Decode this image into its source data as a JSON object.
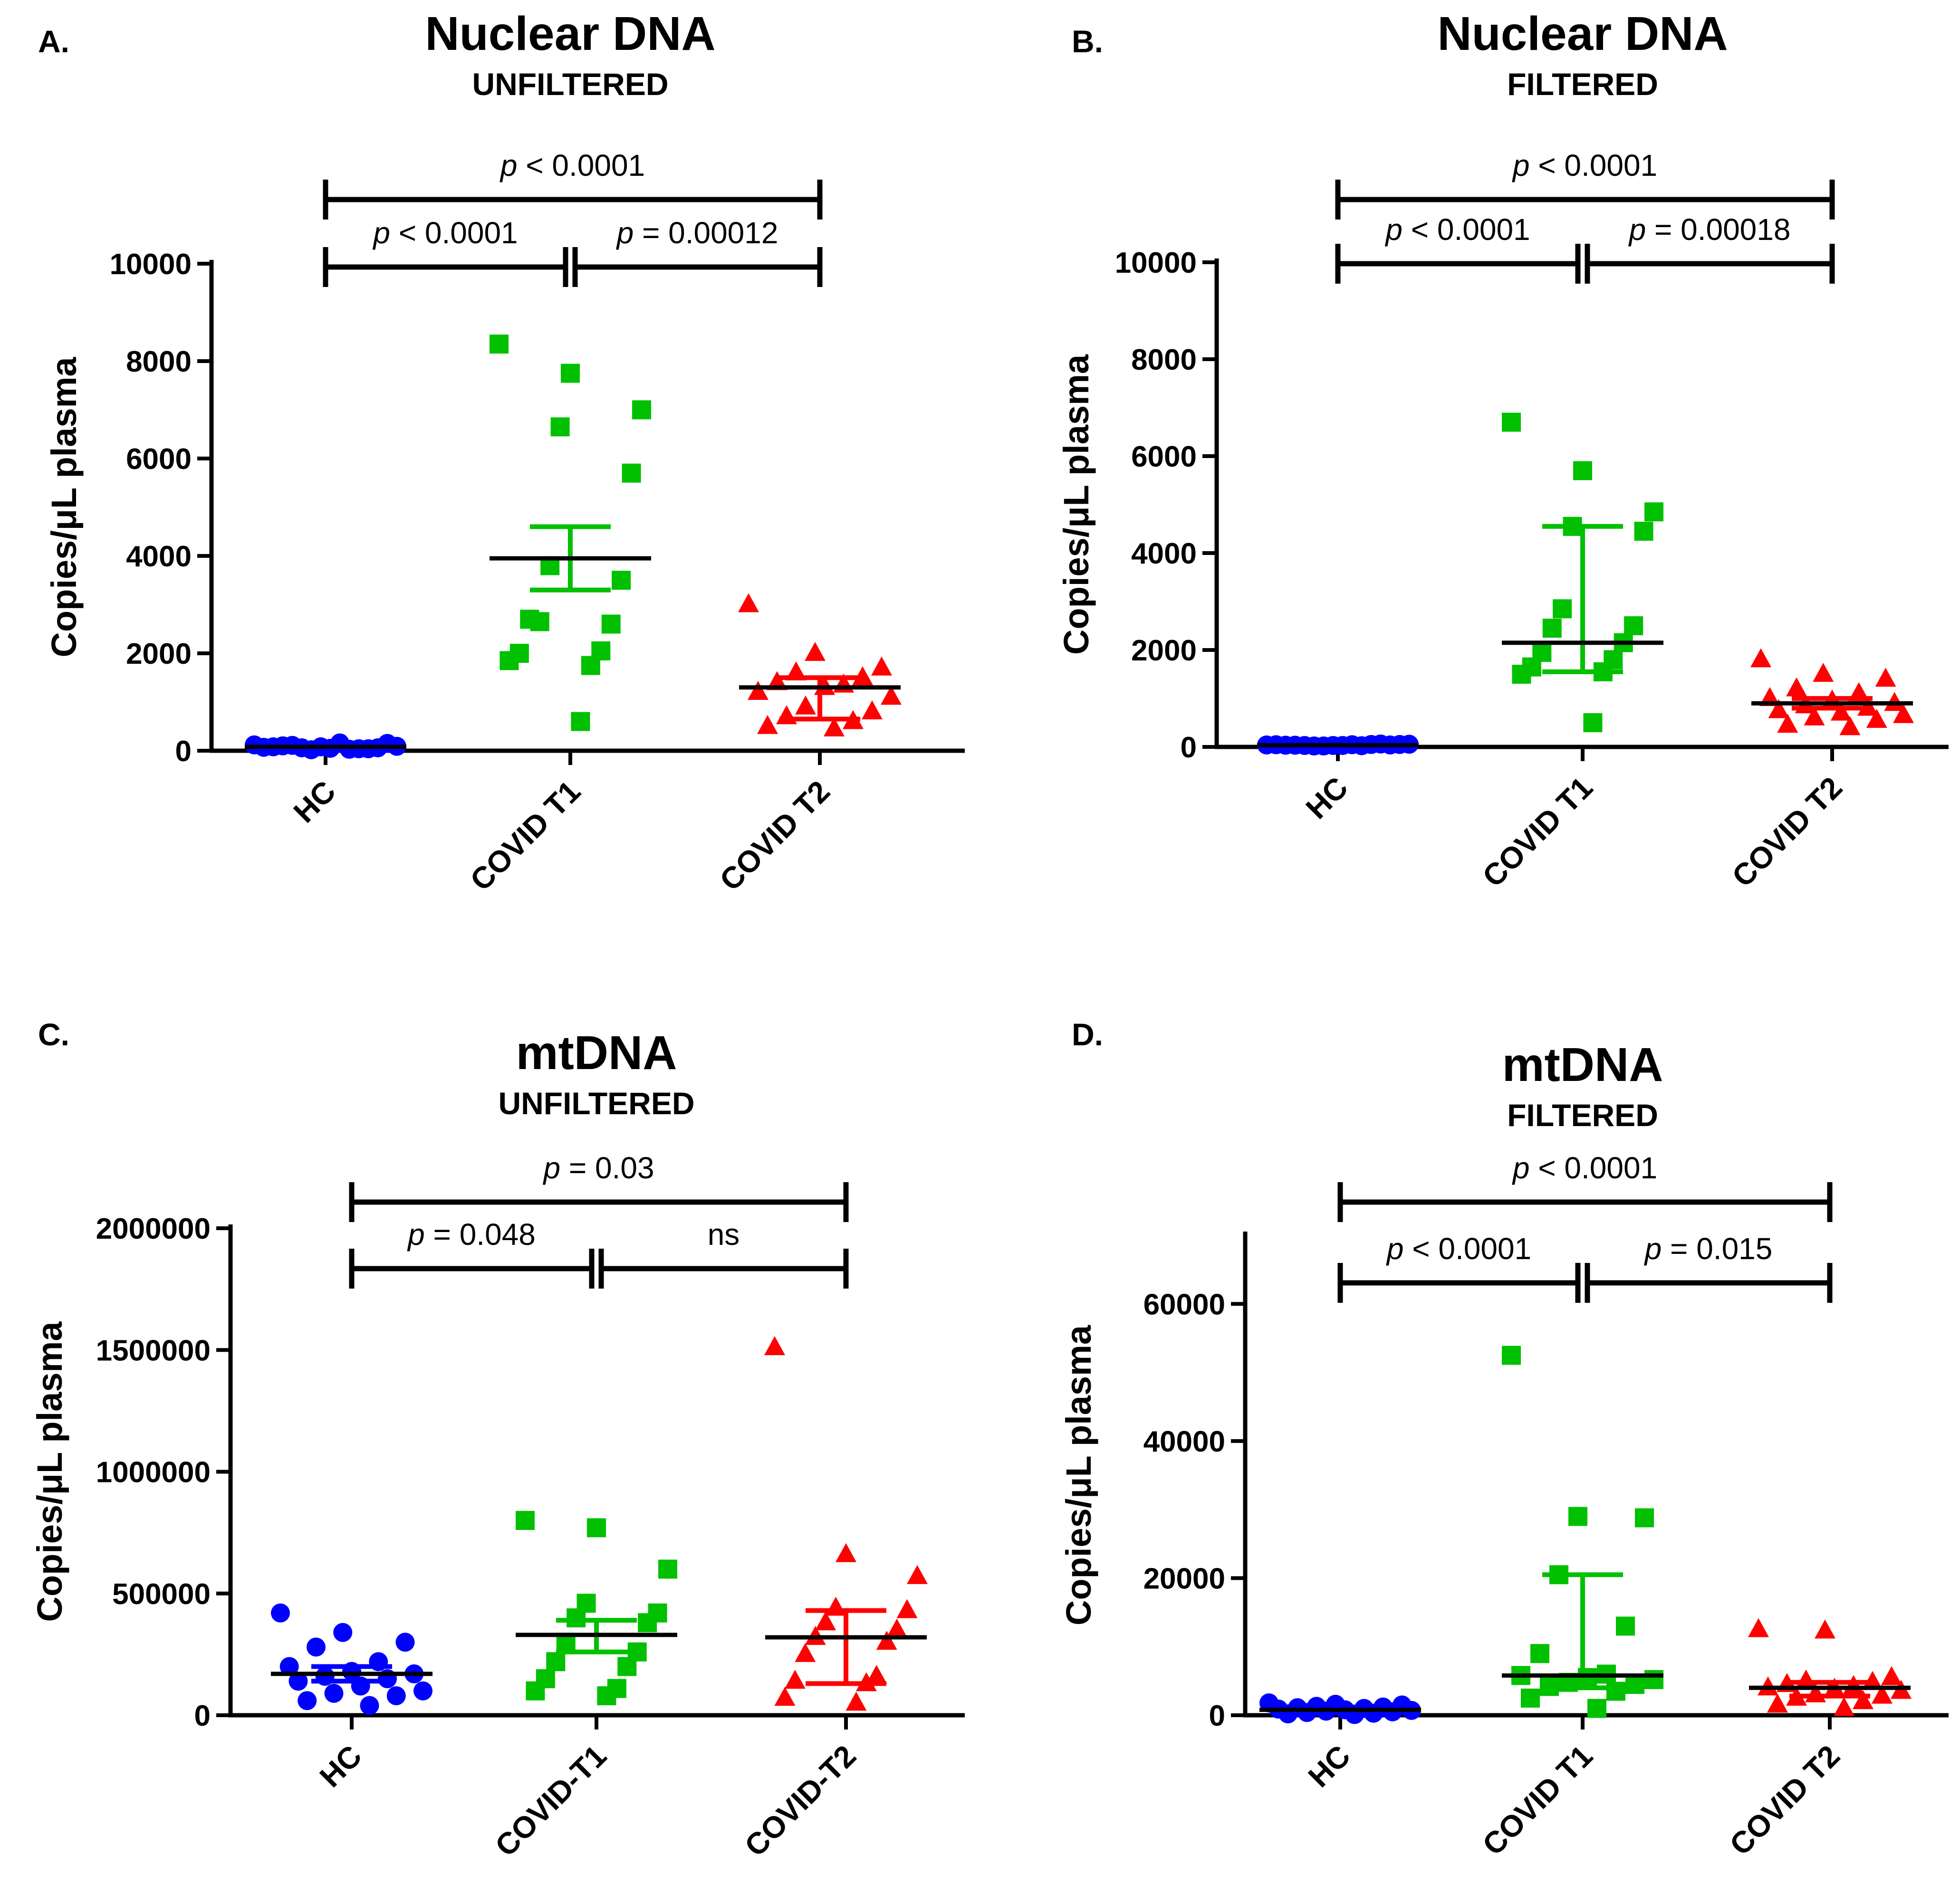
{
  "chart_data": [
    {
      "panel": "A.",
      "type": "scatter",
      "title": "Nuclear DNA",
      "subtitle": "UNFILTERED",
      "ylabel": "Copies/μL plasma",
      "ylim": [
        0,
        10000
      ],
      "yticks": [
        "0",
        "2000",
        "4000",
        "6000",
        "8000",
        "10000"
      ],
      "categories": [
        "HC",
        "COVID T1",
        "COVID T2"
      ],
      "series": [
        {
          "color": "#0000ff",
          "marker": "circle",
          "values": [
            120,
            80,
            150,
            60,
            40,
            100,
            30,
            70,
            50,
            90,
            20,
            60,
            110,
            40,
            80,
            160
          ],
          "center": 80,
          "err": [
            40,
            120
          ]
        },
        {
          "color": "#00c000",
          "marker": "square",
          "values": [
            8350,
            7750,
            7000,
            6650,
            5700,
            3800,
            3500,
            2650,
            2600,
            2700,
            2050,
            2000,
            1750,
            1850,
            600
          ],
          "center": 3950,
          "err": [
            3300,
            4600
          ]
        },
        {
          "color": "#ff0000",
          "marker": "triangle",
          "values": [
            3000,
            2000,
            1700,
            1600,
            1500,
            1400,
            1350,
            1200,
            1300,
            1100,
            900,
            800,
            700,
            600,
            500,
            450
          ],
          "center": 1300,
          "err": [
            650,
            1500
          ]
        }
      ],
      "comparisons": [
        {
          "from": 0,
          "to": 2,
          "level": "top",
          "label": "p < 0.0001"
        },
        {
          "from": 0,
          "to": 1,
          "level": "low",
          "label": "p < 0.0001"
        },
        {
          "from": 1,
          "to": 2,
          "level": "low",
          "label": "p = 0.00012"
        }
      ]
    },
    {
      "panel": "B.",
      "type": "scatter",
      "title": "Nuclear DNA",
      "subtitle": "FILTERED",
      "ylabel": "Copies/μL plasma",
      "ylim": [
        0,
        10000
      ],
      "yticks": [
        "0",
        "2000",
        "4000",
        "6000",
        "8000",
        "10000"
      ],
      "categories": [
        "HC",
        "COVID T1",
        "COVID T2"
      ],
      "series": [
        {
          "color": "#0000ff",
          "marker": "circle",
          "values": [
            40,
            30,
            50,
            20,
            60,
            35,
            25,
            45,
            30,
            55,
            20,
            40,
            30,
            50,
            35,
            45
          ],
          "center": 35,
          "err": [
            20,
            50
          ]
        },
        {
          "color": "#00c000",
          "marker": "square",
          "values": [
            6700,
            5700,
            4850,
            4550,
            4450,
            2850,
            2500,
            2450,
            2150,
            1950,
            1800,
            1650,
            1550,
            1500,
            500
          ],
          "center": 2150,
          "err": [
            1550,
            4550
          ]
        },
        {
          "color": "#ff0000",
          "marker": "triangle",
          "values": [
            1800,
            1500,
            1400,
            1200,
            1100,
            1000,
            950,
            900,
            850,
            800,
            750,
            700,
            650,
            600,
            550,
            450,
            400
          ],
          "center": 900,
          "err": [
            800,
            1000
          ]
        }
      ],
      "comparisons": [
        {
          "from": 0,
          "to": 2,
          "level": "top",
          "label": "p < 0.0001"
        },
        {
          "from": 0,
          "to": 1,
          "level": "low",
          "label": "p < 0.0001"
        },
        {
          "from": 1,
          "to": 2,
          "level": "low",
          "label": "p = 0.00018"
        }
      ]
    },
    {
      "panel": "C.",
      "type": "scatter",
      "title": "mtDNA",
      "subtitle": "UNFILTERED",
      "ylabel": "Copies/μL plasma",
      "ylim": [
        0,
        2000000
      ],
      "yticks": [
        "0",
        "500000",
        "1000000",
        "1500000",
        "2000000"
      ],
      "categories": [
        "HC",
        "COVID-T1",
        "COVID-T2"
      ],
      "series": [
        {
          "color": "#0000ff",
          "marker": "circle",
          "values": [
            420000,
            340000,
            300000,
            280000,
            220000,
            200000,
            180000,
            170000,
            160000,
            150000,
            140000,
            120000,
            100000,
            90000,
            80000,
            60000,
            40000
          ],
          "center": 170000,
          "err": [
            140000,
            200000
          ]
        },
        {
          "color": "#00c000",
          "marker": "square",
          "values": [
            800000,
            770000,
            600000,
            460000,
            420000,
            400000,
            380000,
            300000,
            260000,
            220000,
            200000,
            150000,
            110000,
            100000,
            80000
          ],
          "center": 330000,
          "err": [
            260000,
            390000
          ]
        },
        {
          "color": "#ff0000",
          "marker": "triangle",
          "values": [
            1510000,
            660000,
            570000,
            440000,
            430000,
            380000,
            350000,
            320000,
            300000,
            250000,
            160000,
            140000,
            130000,
            70000,
            50000
          ],
          "center": 320000,
          "err": [
            130000,
            430000
          ]
        }
      ],
      "comparisons": [
        {
          "from": 0,
          "to": 2,
          "level": "top",
          "label": "p = 0.03"
        },
        {
          "from": 0,
          "to": 1,
          "level": "low",
          "label": "p = 0.048"
        },
        {
          "from": 1,
          "to": 2,
          "level": "low",
          "label": "ns"
        }
      ]
    },
    {
      "panel": "D.",
      "type": "scatter",
      "title": "mtDNA",
      "subtitle": "FILTERED",
      "ylabel": "Copies/μL plasma",
      "ylim": [
        0,
        70000
      ],
      "yticks": [
        "0",
        "20000",
        "40000",
        "60000"
      ],
      "categories": [
        "HC",
        "COVID T1",
        "COVID T2"
      ],
      "series": [
        {
          "color": "#0000ff",
          "marker": "circle",
          "values": [
            1800,
            1600,
            1500,
            1300,
            1200,
            1100,
            1000,
            900,
            800,
            700,
            600,
            500,
            400,
            300,
            200,
            100
          ],
          "center": 800,
          "err": [
            400,
            1200
          ]
        },
        {
          "color": "#00c000",
          "marker": "square",
          "values": [
            52500,
            29000,
            28800,
            20500,
            13000,
            9000,
            6000,
            5800,
            5500,
            5200,
            4800,
            4500,
            4200,
            3500,
            2500,
            1000
          ],
          "center": 5800,
          "err": [
            4000,
            20500
          ]
        },
        {
          "color": "#ff0000",
          "marker": "triangle",
          "values": [
            12500,
            12300,
            5500,
            5000,
            4800,
            4500,
            4200,
            4000,
            3800,
            3500,
            3000,
            2800,
            2500,
            2000,
            1500,
            1000
          ],
          "center": 4000,
          "err": [
            2800,
            4800
          ]
        }
      ],
      "comparisons": [
        {
          "from": 0,
          "to": 2,
          "level": "top",
          "label": "p < 0.0001"
        },
        {
          "from": 0,
          "to": 1,
          "level": "low",
          "label": "p < 0.0001"
        },
        {
          "from": 1,
          "to": 2,
          "level": "low",
          "label": "p = 0.015"
        }
      ]
    }
  ]
}
